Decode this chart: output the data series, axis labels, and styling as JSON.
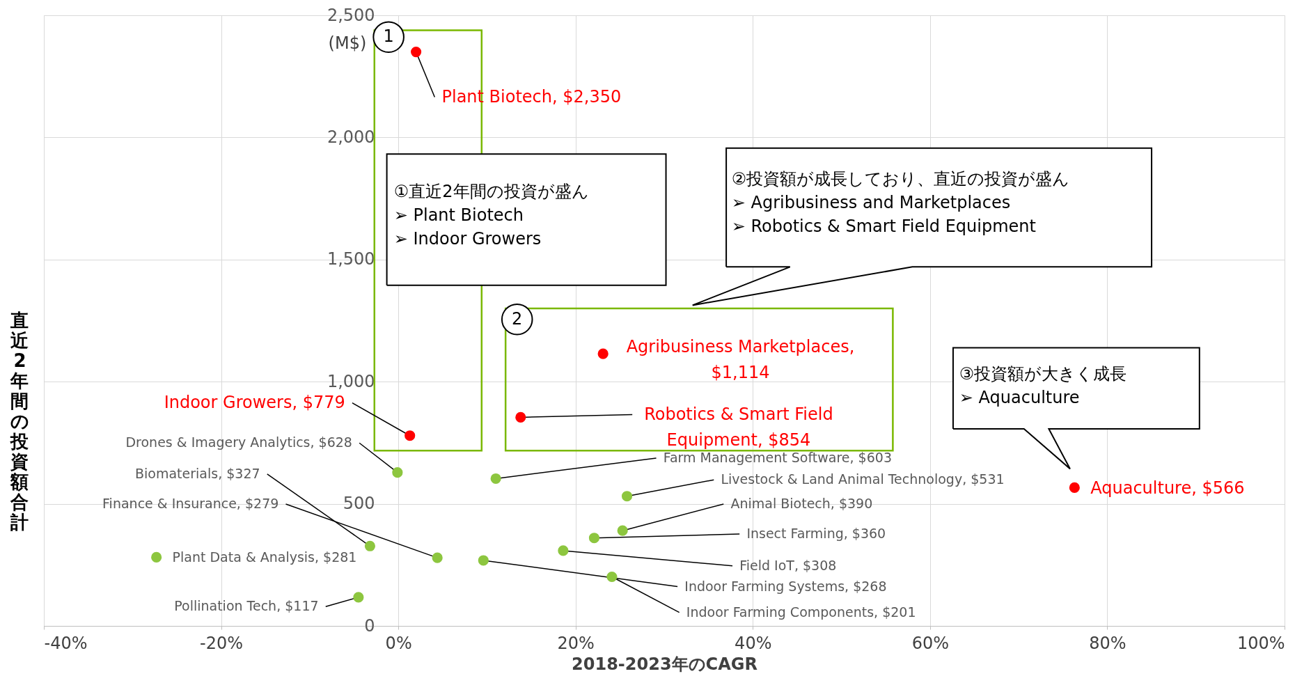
{
  "chart_data": {
    "type": "scatter",
    "xlabel": "2018-2023年のCAGR",
    "ylabel": "直近2年間の投資額合計",
    "xlim": [
      -40,
      100
    ],
    "xticks": [
      {
        "value": -40,
        "label": "-40%"
      },
      {
        "value": -20,
        "label": "-20%"
      },
      {
        "value": 0,
        "label": "0%"
      },
      {
        "value": 20,
        "label": "20%"
      },
      {
        "value": 40,
        "label": "40%"
      },
      {
        "value": 60,
        "label": "60%"
      },
      {
        "value": 80,
        "label": "80%"
      },
      {
        "value": 100,
        "label": "100%"
      }
    ],
    "ylim": [
      0,
      2500
    ],
    "yticks": [
      0,
      500,
      {
        "value": 1000,
        "label": "1,000"
      },
      {
        "value": 1500,
        "label": "1,500"
      },
      {
        "value": 2000,
        "label": "2,000"
      },
      {
        "value": 2500,
        "label": "2,500"
      }
    ],
    "grid": true,
    "marker": "circle",
    "series": [
      {
        "color": "#ff0000",
        "x": [
          2.0,
          1.3,
          23.1,
          13.8,
          76.3
        ],
        "values": [
          2350,
          779,
          1114,
          854,
          566
        ],
        "value_labels": [
          "Plant Biotech, $2,350",
          "Indoor Growers, $779",
          "Agribusiness Marketplaces,\n$1,114",
          "Robotics & Smart Field\nEquipment, $854",
          "Aquaculture, $566"
        ]
      },
      {
        "color": "#8dc63f",
        "x": [
          -0.1,
          -3.2,
          4.4,
          -27.3,
          -4.5,
          11.0,
          25.8,
          25.3,
          22.1,
          18.6,
          9.6,
          24.1
        ],
        "values": [
          628,
          327,
          279,
          281,
          117,
          603,
          531,
          390,
          360,
          308,
          268,
          201
        ],
        "value_labels": [
          "Drones & Imagery Analytics, $628",
          "Biomaterials, $327",
          "Finance & Insurance, $279",
          "Plant Data & Analysis, $281",
          "Pollination Tech, $117",
          "Farm Management Software, $603",
          "Livestock & Land Animal Technology, $531",
          "Animal Biotech, $390",
          "Insect Farming, $360",
          "Field IoT, $308",
          "Indoor Farming Systems, $268",
          "Indoor Farming Components, $201"
        ]
      }
    ],
    "annotations": [
      "①直近2年間の投資が盛ん\n➢ Plant Biotech\n➢ Indoor Growers",
      "②投資額が成長しており、直近の投資が盛ん\n➢ Agribusiness and Marketplaces\n➢ Robotics & Smart Field Equipment",
      "③投資額が大きく成長\n➢ Aquaculture",
      "1",
      "2",
      "(M$)"
    ]
  }
}
